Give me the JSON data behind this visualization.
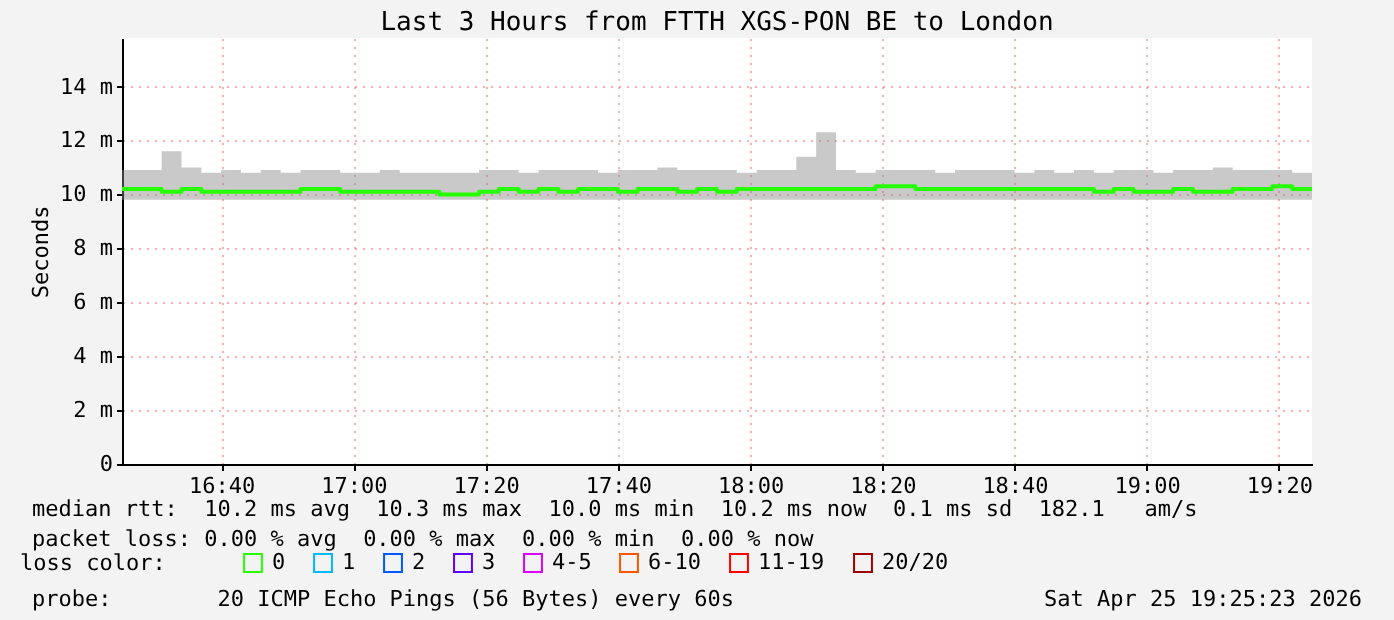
{
  "chart_data": {
    "type": "step",
    "title": "Last 3 Hours from FTTH XGS-PON BE to London",
    "ylabel": "Seconds",
    "legend_title": "loss color:",
    "x": [
      "2026-04-25T16:25",
      "2026-04-25T16:28",
      "2026-04-25T16:31",
      "2026-04-25T16:34",
      "2026-04-25T16:37",
      "2026-04-25T16:40",
      "2026-04-25T16:43",
      "2026-04-25T16:46",
      "2026-04-25T16:49",
      "2026-04-25T16:52",
      "2026-04-25T16:55",
      "2026-04-25T16:58",
      "2026-04-25T17:01",
      "2026-04-25T17:04",
      "2026-04-25T17:07",
      "2026-04-25T17:10",
      "2026-04-25T17:13",
      "2026-04-25T17:16",
      "2026-04-25T17:19",
      "2026-04-25T17:22",
      "2026-04-25T17:25",
      "2026-04-25T17:28",
      "2026-04-25T17:31",
      "2026-04-25T17:34",
      "2026-04-25T17:37",
      "2026-04-25T17:40",
      "2026-04-25T17:43",
      "2026-04-25T17:46",
      "2026-04-25T17:49",
      "2026-04-25T17:52",
      "2026-04-25T17:55",
      "2026-04-25T17:58",
      "2026-04-25T18:01",
      "2026-04-25T18:04",
      "2026-04-25T18:07",
      "2026-04-25T18:10",
      "2026-04-25T18:13",
      "2026-04-25T18:16",
      "2026-04-25T18:19",
      "2026-04-25T18:22",
      "2026-04-25T18:25",
      "2026-04-25T18:28",
      "2026-04-25T18:31",
      "2026-04-25T18:34",
      "2026-04-25T18:37",
      "2026-04-25T18:40",
      "2026-04-25T18:43",
      "2026-04-25T18:46",
      "2026-04-25T18:49",
      "2026-04-25T18:52",
      "2026-04-25T18:55",
      "2026-04-25T18:58",
      "2026-04-25T19:01",
      "2026-04-25T19:04",
      "2026-04-25T19:07",
      "2026-04-25T19:10",
      "2026-04-25T19:13",
      "2026-04-25T19:16",
      "2026-04-25T19:19",
      "2026-04-25T19:22",
      "2026-04-25T19:25"
    ],
    "series": [
      {
        "name": "0",
        "color": "#26ff00",
        "values": [
          10.2,
          10.2,
          10.1,
          10.2,
          10.1,
          10.1,
          10.1,
          10.1,
          10.1,
          10.2,
          10.2,
          10.1,
          10.1,
          10.1,
          10.1,
          10.1,
          10.0,
          10.0,
          10.1,
          10.2,
          10.1,
          10.2,
          10.1,
          10.2,
          10.2,
          10.1,
          10.2,
          10.2,
          10.1,
          10.2,
          10.1,
          10.2,
          10.2,
          10.2,
          10.2,
          10.2,
          10.2,
          10.2,
          10.3,
          10.3,
          10.2,
          10.2,
          10.2,
          10.2,
          10.2,
          10.2,
          10.2,
          10.2,
          10.2,
          10.1,
          10.2,
          10.1,
          10.1,
          10.2,
          10.1,
          10.1,
          10.2,
          10.2,
          10.3,
          10.2,
          10.2
        ],
        "lower": [
          9.8,
          9.8,
          9.8,
          9.8,
          9.8,
          9.8,
          9.8,
          9.8,
          9.8,
          9.8,
          9.8,
          9.8,
          9.8,
          9.8,
          9.8,
          9.8,
          9.8,
          9.8,
          9.8,
          9.8,
          9.8,
          9.8,
          9.8,
          9.8,
          9.8,
          9.8,
          9.8,
          9.8,
          9.8,
          9.8,
          9.8,
          9.8,
          9.8,
          9.8,
          9.8,
          9.8,
          9.8,
          9.8,
          9.8,
          9.8,
          9.8,
          9.8,
          9.8,
          9.8,
          9.8,
          9.8,
          9.8,
          9.8,
          9.8,
          9.8,
          9.8,
          9.8,
          9.8,
          9.8,
          9.8,
          9.8,
          9.8,
          9.8,
          9.8,
          9.8,
          9.8
        ],
        "upper": [
          10.9,
          10.9,
          11.6,
          11.0,
          10.8,
          10.9,
          10.8,
          10.9,
          10.8,
          10.9,
          10.9,
          10.8,
          10.8,
          10.9,
          10.8,
          10.8,
          10.8,
          10.8,
          10.9,
          10.9,
          10.8,
          10.9,
          10.9,
          10.9,
          10.8,
          10.9,
          10.9,
          11.0,
          10.9,
          10.9,
          10.9,
          10.8,
          10.9,
          10.9,
          11.4,
          12.3,
          10.9,
          10.8,
          10.9,
          10.9,
          10.9,
          10.8,
          10.9,
          10.9,
          10.9,
          10.8,
          10.9,
          10.8,
          10.9,
          10.8,
          10.9,
          10.9,
          10.8,
          10.9,
          10.9,
          11.0,
          10.9,
          10.9,
          10.9,
          10.8,
          10.9
        ]
      },
      {
        "name": "1",
        "color": "#00b8ff",
        "values": [
          null,
          null,
          null,
          null,
          null,
          null,
          null,
          null,
          null,
          null,
          null,
          null,
          null,
          null,
          null,
          null,
          null,
          null,
          null,
          null,
          null,
          null,
          null,
          null,
          null,
          null,
          null,
          null,
          null,
          null,
          null,
          null,
          null,
          null,
          null,
          null,
          null,
          null,
          null,
          null,
          null,
          null,
          null,
          null,
          null,
          null,
          null,
          null,
          null,
          null,
          null,
          null,
          null,
          null,
          null,
          null,
          null,
          null,
          null,
          null,
          null
        ]
      },
      {
        "name": "2",
        "color": "#0059ff",
        "values": [
          null,
          null,
          null,
          null,
          null,
          null,
          null,
          null,
          null,
          null,
          null,
          null,
          null,
          null,
          null,
          null,
          null,
          null,
          null,
          null,
          null,
          null,
          null,
          null,
          null,
          null,
          null,
          null,
          null,
          null,
          null,
          null,
          null,
          null,
          null,
          null,
          null,
          null,
          null,
          null,
          null,
          null,
          null,
          null,
          null,
          null,
          null,
          null,
          null,
          null,
          null,
          null,
          null,
          null,
          null,
          null,
          null,
          null,
          null,
          null,
          null
        ]
      },
      {
        "name": "3",
        "color": "#5e00ff",
        "values": [
          null,
          null,
          null,
          null,
          null,
          null,
          null,
          null,
          null,
          null,
          null,
          null,
          null,
          null,
          null,
          null,
          null,
          null,
          null,
          null,
          null,
          null,
          null,
          null,
          null,
          null,
          null,
          null,
          null,
          null,
          null,
          null,
          null,
          null,
          null,
          null,
          null,
          null,
          null,
          null,
          null,
          null,
          null,
          null,
          null,
          null,
          null,
          null,
          null,
          null,
          null,
          null,
          null,
          null,
          null,
          null,
          null,
          null,
          null,
          null,
          null
        ]
      },
      {
        "name": "4-5",
        "color": "#dd00ff",
        "values": [
          null,
          null,
          null,
          null,
          null,
          null,
          null,
          null,
          null,
          null,
          null,
          null,
          null,
          null,
          null,
          null,
          null,
          null,
          null,
          null,
          null,
          null,
          null,
          null,
          null,
          null,
          null,
          null,
          null,
          null,
          null,
          null,
          null,
          null,
          null,
          null,
          null,
          null,
          null,
          null,
          null,
          null,
          null,
          null,
          null,
          null,
          null,
          null,
          null,
          null,
          null,
          null,
          null,
          null,
          null,
          null,
          null,
          null,
          null,
          null,
          null
        ]
      },
      {
        "name": "6-10",
        "color": "#ff5500",
        "values": [
          null,
          null,
          null,
          null,
          null,
          null,
          null,
          null,
          null,
          null,
          null,
          null,
          null,
          null,
          null,
          null,
          null,
          null,
          null,
          null,
          null,
          null,
          null,
          null,
          null,
          null,
          null,
          null,
          null,
          null,
          null,
          null,
          null,
          null,
          null,
          null,
          null,
          null,
          null,
          null,
          null,
          null,
          null,
          null,
          null,
          null,
          null,
          null,
          null,
          null,
          null,
          null,
          null,
          null,
          null,
          null,
          null,
          null,
          null,
          null,
          null
        ]
      },
      {
        "name": "11-19",
        "color": "#ff0000",
        "values": [
          null,
          null,
          null,
          null,
          null,
          null,
          null,
          null,
          null,
          null,
          null,
          null,
          null,
          null,
          null,
          null,
          null,
          null,
          null,
          null,
          null,
          null,
          null,
          null,
          null,
          null,
          null,
          null,
          null,
          null,
          null,
          null,
          null,
          null,
          null,
          null,
          null,
          null,
          null,
          null,
          null,
          null,
          null,
          null,
          null,
          null,
          null,
          null,
          null,
          null,
          null,
          null,
          null,
          null,
          null,
          null,
          null,
          null,
          null,
          null,
          null
        ]
      },
      {
        "name": "20/20",
        "color": "#a10000",
        "values": [
          null,
          null,
          null,
          null,
          null,
          null,
          null,
          null,
          null,
          null,
          null,
          null,
          null,
          null,
          null,
          null,
          null,
          null,
          null,
          null,
          null,
          null,
          null,
          null,
          null,
          null,
          null,
          null,
          null,
          null,
          null,
          null,
          null,
          null,
          null,
          null,
          null,
          null,
          null,
          null,
          null,
          null,
          null,
          null,
          null,
          null,
          null,
          null,
          null,
          null,
          null,
          null,
          null,
          null,
          null,
          null,
          null,
          null,
          null,
          null,
          null
        ]
      }
    ],
    "xlim": [
      "2026-04-25T16:25",
      "2026-04-25T19:25"
    ],
    "xticks": [
      {
        "value": "2026-04-25T16:40",
        "label": "16:40"
      },
      {
        "value": "2026-04-25T17:00",
        "label": "17:00"
      },
      {
        "value": "2026-04-25T17:20",
        "label": "17:20"
      },
      {
        "value": "2026-04-25T17:40",
        "label": "17:40"
      },
      {
        "value": "2026-04-25T18:00",
        "label": "18:00"
      },
      {
        "value": "2026-04-25T18:20",
        "label": "18:20"
      },
      {
        "value": "2026-04-25T18:40",
        "label": "18:40"
      },
      {
        "value": "2026-04-25T19:00",
        "label": "19:00"
      },
      {
        "value": "2026-04-25T19:20",
        "label": "19:20"
      }
    ],
    "ylim": [
      0,
      15.8
    ],
    "yticks": [
      0,
      {
        "value": 2,
        "label": "2 m"
      },
      {
        "value": 4,
        "label": "4 m"
      },
      {
        "value": 6,
        "label": "6 m"
      },
      {
        "value": 8,
        "label": "8 m"
      },
      {
        "value": 10,
        "label": "10 m"
      },
      {
        "value": 12,
        "label": "12 m"
      },
      {
        "value": 14,
        "label": "14 m"
      }
    ],
    "grid": true,
    "legend": "bottom left",
    "annotations": [
      "median rtt:  10.2 ms avg  10.3 ms max  10.0 ms min  10.2 ms now  0.1 ms sd  182.1   am/s",
      "packet loss: 0.00 % avg  0.00 % max  0.00 % min  0.00 % now",
      "probe:        20 ICMP Echo Pings (56 Bytes) every 60s",
      "Sat Apr 25 19:25:23 2026"
    ]
  }
}
